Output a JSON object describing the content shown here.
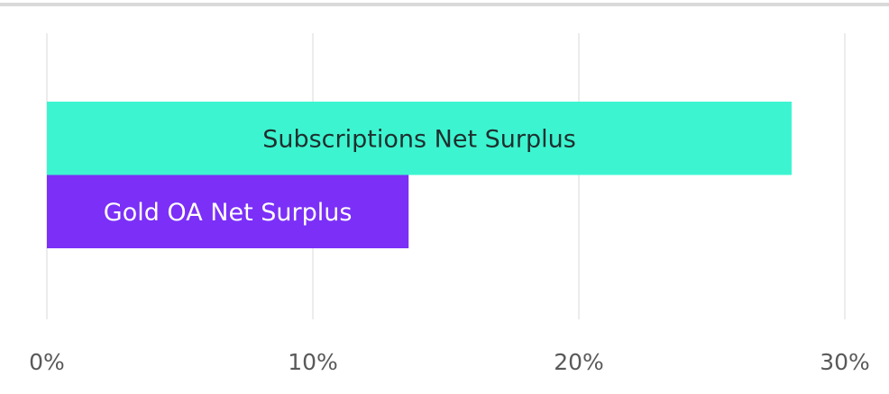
{
  "chart_data": {
    "type": "bar",
    "orientation": "horizontal",
    "categories": [
      "Subscriptions Net Surplus",
      "Gold OA Net Surplus"
    ],
    "values": [
      28,
      13.6
    ],
    "colors": [
      "#3cf5d0",
      "#7b2ff7"
    ],
    "label_colors": [
      "#1f2f2f",
      "#ffffff"
    ],
    "xlim": [
      0,
      30
    ],
    "xticks": [
      {
        "value": 0,
        "label": "0%"
      },
      {
        "value": 10,
        "label": "10%"
      },
      {
        "value": 20,
        "label": "20%"
      },
      {
        "value": 30,
        "label": "30%"
      }
    ],
    "grid": true
  }
}
